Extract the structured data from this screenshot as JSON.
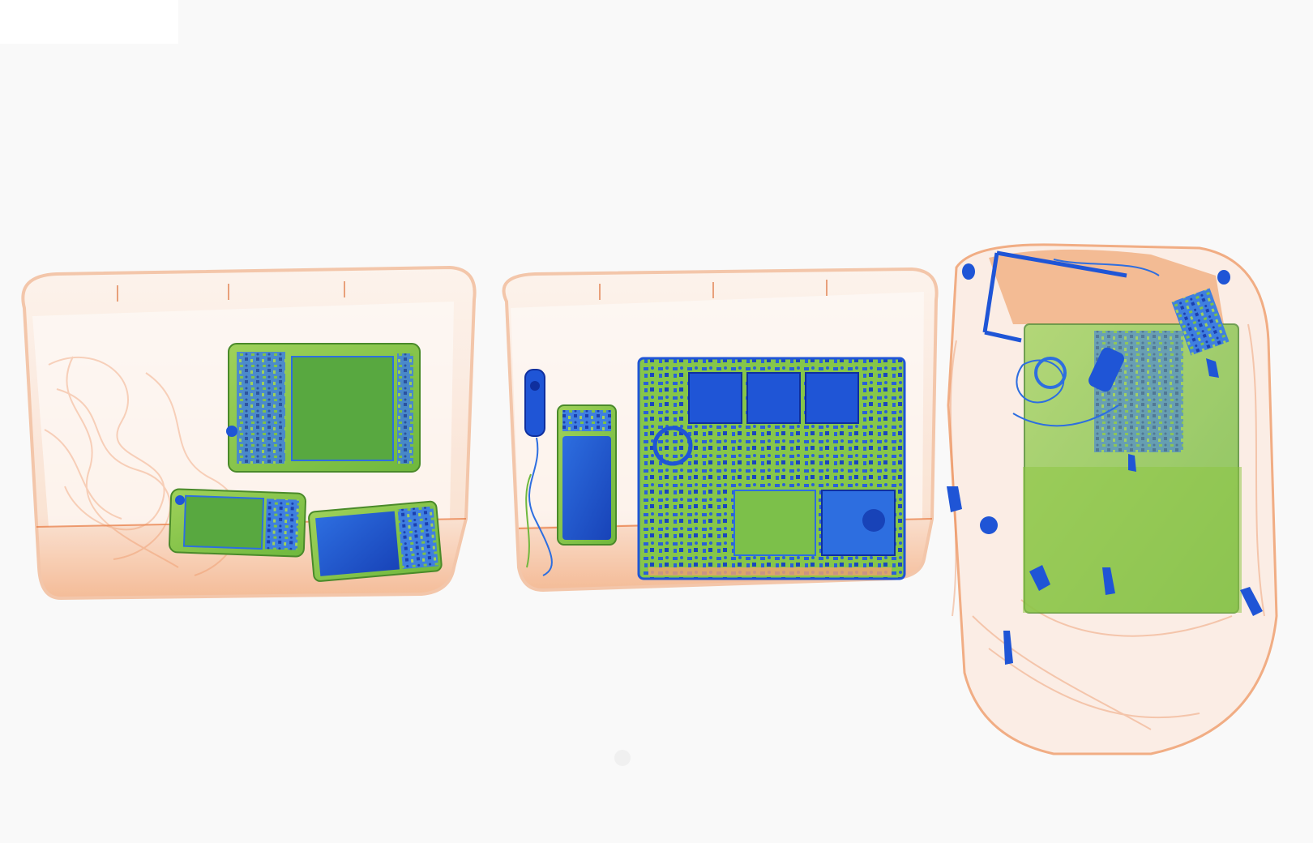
{
  "scene": {
    "kind": "x-ray-baggage-scan",
    "background_color": "#f9f9f9",
    "palette": {
      "organic": "#f0a070",
      "organic_dark": "#e8793f",
      "mixed": "#8cc63f",
      "metal": "#1f55d6",
      "metal_dark": "#0f2f9e"
    },
    "objects": [
      {
        "name": "tray-left",
        "contains": [
          "tablet",
          "smartphone",
          "smartphone",
          "cloth"
        ]
      },
      {
        "name": "tray-middle",
        "contains": [
          "laptop",
          "power-bank",
          "earphones"
        ]
      },
      {
        "name": "backpack",
        "contains": [
          "laptop",
          "cables",
          "zippers",
          "keys"
        ]
      }
    ]
  }
}
